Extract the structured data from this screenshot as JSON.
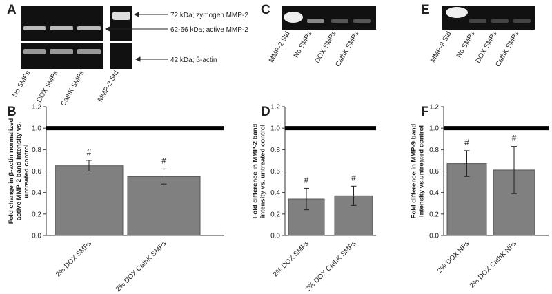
{
  "panel_letters": [
    "A",
    "B",
    "C",
    "D",
    "E",
    "F"
  ],
  "gels": [
    {
      "lanes": [
        "No SMPs",
        "DOX SMPs",
        "CathK SMPs",
        "MMP-2 Std"
      ],
      "annotations": [
        "72 kDa; zymogen MMP-2",
        "62-66 kDa; active MMP-2",
        "42 kDa; β-actin"
      ]
    },
    {
      "lanes": [
        "MMP-2 Std",
        "No SMPs",
        "DOX SMPs",
        "CathK SMPs"
      ]
    },
    {
      "lanes": [
        "MMP-9 Std",
        "No SMPs",
        "DOX SMPs",
        "CathK SMPs"
      ]
    }
  ],
  "chart_data": [
    {
      "type": "bar",
      "ylabel": [
        "Fold change in β-actin normalized",
        "active MMP-2 band intensity vs.",
        "untreated control"
      ],
      "categories": [
        "2% DOX SMPs",
        "2% DOX CathK SMPs"
      ],
      "values": [
        0.65,
        0.55
      ],
      "errors": [
        0.05,
        0.07
      ],
      "annotations": [
        "#",
        "#"
      ],
      "color": "#808080",
      "reference_line": 1.0,
      "ylim": [
        0,
        1.2
      ],
      "yticks": [
        {
          "value": 0,
          "label": "0.0"
        },
        {
          "value": 0.2,
          "label": "0.2"
        },
        {
          "value": 0.4,
          "label": "0.4"
        },
        {
          "value": 0.6,
          "label": "0.6"
        },
        {
          "value": 0.8,
          "label": "0.8"
        },
        {
          "value": 1.0,
          "label": "1.0"
        },
        {
          "value": 1.2,
          "label": "1.2"
        }
      ]
    },
    {
      "type": "bar",
      "ylabel": [
        "Fold difference in MMP-2 band",
        "intensity vs. untreated control"
      ],
      "categories": [
        "2% DOX SMPs",
        "2% DOX CathK SMPs"
      ],
      "values": [
        0.34,
        0.37
      ],
      "errors": [
        0.1,
        0.09
      ],
      "annotations": [
        "#",
        "#"
      ],
      "color": "#808080",
      "reference_line": 1.0,
      "ylim": [
        0,
        1.2
      ],
      "yticks": [
        {
          "value": 0,
          "label": "0.0"
        },
        {
          "value": 0.2,
          "label": "0.2"
        },
        {
          "value": 0.4,
          "label": "0.4"
        },
        {
          "value": 0.6,
          "label": "0.6"
        },
        {
          "value": 0.8,
          "label": "0.8"
        },
        {
          "value": 1.0,
          "label": "1.0"
        },
        {
          "value": 1.2,
          "label": "1.2"
        }
      ]
    },
    {
      "type": "bar",
      "ylabel": [
        "Fold difference in MMP-9 band",
        "intensity vs.untreated control"
      ],
      "categories": [
        "2% DOX NPs",
        "2% DOX CathK NPs"
      ],
      "values": [
        0.67,
        0.61
      ],
      "errors": [
        0.12,
        0.22
      ],
      "annotations": [
        "#",
        "#"
      ],
      "color": "#808080",
      "reference_line": 1.0,
      "ylim": [
        0,
        1.2
      ],
      "yticks": [
        {
          "value": 0,
          "label": "0.0"
        },
        {
          "value": 0.2,
          "label": "0.2"
        },
        {
          "value": 0.4,
          "label": "0.4"
        },
        {
          "value": 0.6,
          "label": "0.6"
        },
        {
          "value": 0.8,
          "label": "0.8"
        },
        {
          "value": 1.0,
          "label": "1.0"
        },
        {
          "value": 1.2,
          "label": "1.2"
        }
      ]
    }
  ]
}
